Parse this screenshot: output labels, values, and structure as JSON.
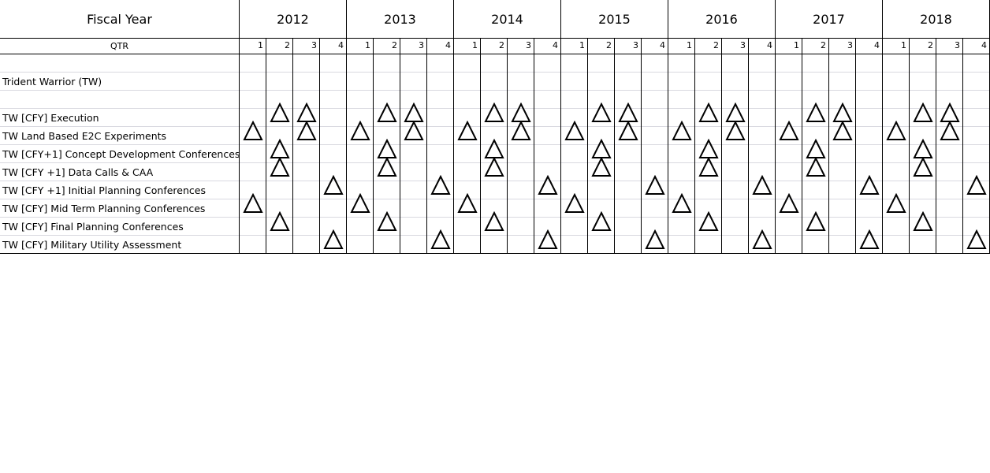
{
  "header": {
    "fiscal_year_label": "Fiscal Year",
    "qtr_label": "QTR",
    "years": [
      "2012",
      "2013",
      "2014",
      "2015",
      "2016",
      "2017",
      "2018"
    ],
    "quarters": [
      "1",
      "2",
      "3",
      "4"
    ]
  },
  "rows": [
    {
      "label": ""
    },
    {
      "label": "Trident Warrior (TW)"
    },
    {
      "label": ""
    },
    {
      "label": "TW [CFY] Execution"
    },
    {
      "label": "TW Land Based E2C Experiments"
    },
    {
      "label": "TW [CFY+1] Concept Development Conferences"
    },
    {
      "label": "TW [CFY +1] Data Calls & CAA"
    },
    {
      "label": "TW [CFY +1] Initial Planning Conferences"
    },
    {
      "label": "TW [CFY] Mid Term Planning Conferences"
    },
    {
      "label": "TW [CFY] Final Planning Conferences"
    },
    {
      "label": "TW [CFY] Military Utility Assessment"
    }
  ],
  "milestones": [
    {
      "row": "TW [CFY] Execution",
      "quarters": [
        2,
        3
      ]
    },
    {
      "row": "TW Land Based E2C Experiments",
      "quarters": [
        1,
        3
      ]
    },
    {
      "row": "TW [CFY+1] Concept Development Conferences",
      "quarters": [
        2
      ]
    },
    {
      "row": "TW [CFY +1] Data Calls & CAA",
      "quarters": [
        2
      ]
    },
    {
      "row": "TW [CFY +1] Initial Planning Conferences",
      "quarters": [
        4
      ]
    },
    {
      "row": "TW [CFY] Mid Term Planning Conferences",
      "quarters": [
        1
      ]
    },
    {
      "row": "TW [CFY] Final Planning Conferences",
      "quarters": [
        2
      ]
    },
    {
      "row": "TW [CFY] Military Utility Assessment",
      "quarters": [
        4
      ]
    }
  ],
  "marker_symbol": "triangle",
  "colors": {
    "grid": "#d9d9e0",
    "border": "#000000",
    "marker": "#000000"
  }
}
